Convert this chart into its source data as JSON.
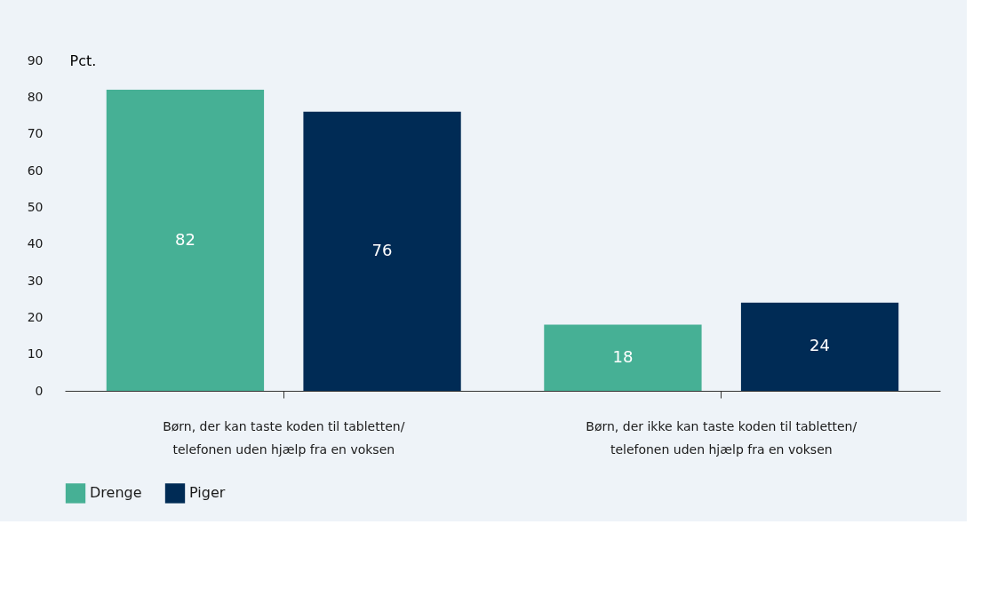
{
  "chart_data": {
    "type": "bar",
    "ylabel": "Pct.",
    "categories": [
      "Børn, der kan taste koden til tabletten/ telefonen uden hjælp fra en voksen",
      "Børn, der ikke kan taste koden til tabletten/ telefonen uden hjælp fra en voksen"
    ],
    "series": [
      {
        "name": "Drenge",
        "color": "#46b095",
        "values": [
          82,
          18
        ]
      },
      {
        "name": "Piger",
        "color": "#002b55",
        "values": [
          76,
          24
        ]
      }
    ],
    "ylim": [
      0,
      90
    ],
    "yticks": [
      0,
      10,
      20,
      30,
      40,
      50,
      60,
      70,
      80,
      90
    ],
    "data_labels": true,
    "legend": "bottom left",
    "grid": false
  }
}
